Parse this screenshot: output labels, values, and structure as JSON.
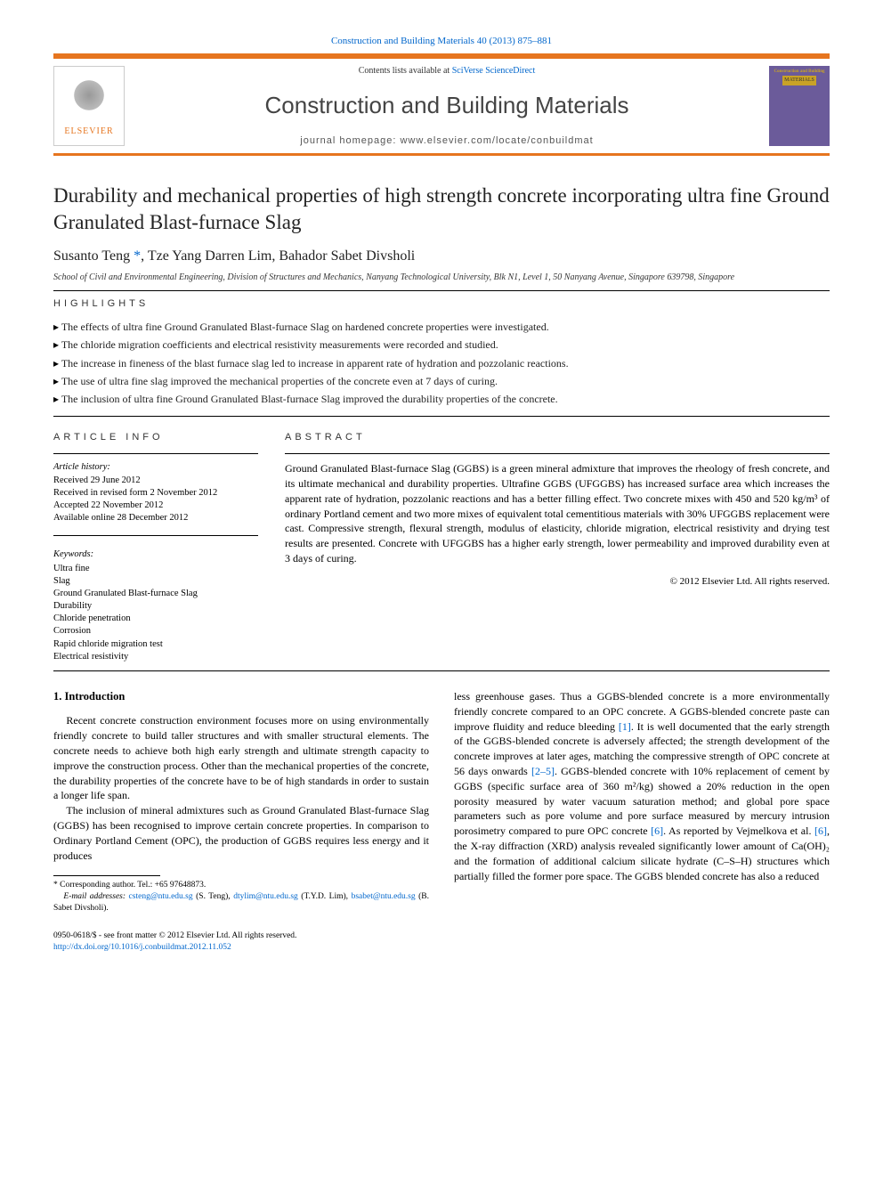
{
  "header": {
    "citation": "Construction and Building Materials 40 (2013) 875–881",
    "contents_prefix": "Contents lists available at ",
    "contents_link": "SciVerse ScienceDirect",
    "journal_title": "Construction and Building Materials",
    "homepage_prefix": "journal homepage: ",
    "homepage": "www.elsevier.com/locate/conbuildmat",
    "publisher_logo_text": "ELSEVIER",
    "cover_text_top": "Construction and Building",
    "cover_text_main": "MATERIALS"
  },
  "article": {
    "title": "Durability and mechanical properties of high strength concrete incorporating ultra fine Ground Granulated Blast-furnace Slag",
    "authors_html": "Susanto Teng *, Tze Yang Darren Lim, Bahador Sabet Divsholi",
    "author_1": "Susanto Teng",
    "author_2": "Tze Yang Darren Lim",
    "author_3": "Bahador Sabet Divsholi",
    "corr_marker": "*",
    "sep": ", ",
    "affiliation": "School of Civil and Environmental Engineering, Division of Structures and Mechanics, Nanyang Technological University, Blk N1, Level 1, 50 Nanyang Avenue, Singapore 639798, Singapore"
  },
  "highlights": {
    "label": "HIGHLIGHTS",
    "items": [
      "The effects of ultra fine Ground Granulated Blast-furnace Slag on hardened concrete properties were investigated.",
      "The chloride migration coefficients and electrical resistivity measurements were recorded and studied.",
      "The increase in fineness of the blast furnace slag led to increase in apparent rate of hydration and pozzolanic reactions.",
      "The use of ultra fine slag improved the mechanical properties of the concrete even at 7 days of curing.",
      "The inclusion of ultra fine Ground Granulated Blast-furnace Slag improved the durability properties of the concrete."
    ]
  },
  "info": {
    "label": "ARTICLE INFO",
    "history_label": "Article history:",
    "history": [
      "Received 29 June 2012",
      "Received in revised form 2 November 2012",
      "Accepted 22 November 2012",
      "Available online 28 December 2012"
    ],
    "keywords_label": "Keywords:",
    "keywords": [
      "Ultra fine",
      "Slag",
      "Ground Granulated Blast-furnace Slag",
      "Durability",
      "Chloride penetration",
      "Corrosion",
      "Rapid chloride migration test",
      "Electrical resistivity"
    ]
  },
  "abstract": {
    "label": "ABSTRACT",
    "text": "Ground Granulated Blast-furnace Slag (GGBS) is a green mineral admixture that improves the rheology of fresh concrete, and its ultimate mechanical and durability properties. Ultrafine GGBS (UFGGBS) has increased surface area which increases the apparent rate of hydration, pozzolanic reactions and has a better filling effect. Two concrete mixes with 450 and 520 kg/m³ of ordinary Portland cement and two more mixes of equivalent total cementitious materials with 30% UFGGBS replacement were cast. Compressive strength, flexural strength, modulus of elasticity, chloride migration, electrical resistivity and drying test results are presented. Concrete with UFGGBS has a higher early strength, lower permeability and improved durability even at 3 days of curing.",
    "copyright": "© 2012 Elsevier Ltd. All rights reserved."
  },
  "body": {
    "section_heading": "1. Introduction",
    "col1_p1": "Recent concrete construction environment focuses more on using environmentally friendly concrete to build taller structures and with smaller structural elements. The concrete needs to achieve both high early strength and ultimate strength capacity to improve the construction process. Other than the mechanical properties of the concrete, the durability properties of the concrete have to be of high standards in order to sustain a longer life span.",
    "col1_p2": "The inclusion of mineral admixtures such as Ground Granulated Blast-furnace Slag (GGBS) has been recognised to improve certain concrete properties. In comparison to Ordinary Portland Cement (OPC), the production of GGBS requires less energy and it produces",
    "col2_p1a": "less greenhouse gases. Thus a GGBS-blended concrete is a more environmentally friendly concrete compared to an OPC concrete. A GGBS-blended concrete paste can improve fluidity and reduce bleeding ",
    "col2_ref1": "[1]",
    "col2_p1b": ". It is well documented that the early strength of the GGBS-blended concrete is adversely affected; the strength development of the concrete improves at later ages, matching the compressive strength of OPC concrete at 56 days onwards ",
    "col2_ref2": "[2–5]",
    "col2_p1c": ". GGBS-blended concrete with 10% replacement of cement by GGBS (specific surface area of 360 m²/kg) showed a 20% reduction in the open porosity measured by water vacuum saturation method; and global pore space parameters such as pore volume and pore surface measured by mercury intrusion porosimetry compared to pure OPC concrete ",
    "col2_ref3": "[6]",
    "col2_p1d": ". As reported by Vejmelkova et al. ",
    "col2_ref4": "[6]",
    "col2_p1e": ", the X-ray diffraction (XRD) analysis revealed significantly lower amount of Ca(OH)₂ and the formation of additional calcium silicate hydrate (C–S–H) structures which partially filled the former pore space. The GGBS blended concrete has also a reduced"
  },
  "footnote": {
    "corr": "* Corresponding author. Tel.: +65 97648873.",
    "email_label": "E-mail addresses: ",
    "email1": "csteng@ntu.edu.sg",
    "email1_who": " (S. Teng), ",
    "email2": "dtylim@ntu.edu.sg",
    "email2_who": " (T.Y.D. Lim), ",
    "email3": "bsabet@ntu.edu.sg",
    "email3_who": " (B. Sabet Divsholi)."
  },
  "doi": {
    "line1": "0950-0618/$ - see front matter © 2012 Elsevier Ltd. All rights reserved.",
    "url": "http://dx.doi.org/10.1016/j.conbuildmat.2012.11.052"
  },
  "colors": {
    "orange": "#e6751f",
    "link": "#0066cc",
    "cover_bg": "#6b5b9a",
    "cover_title_bg": "#c9a227"
  }
}
